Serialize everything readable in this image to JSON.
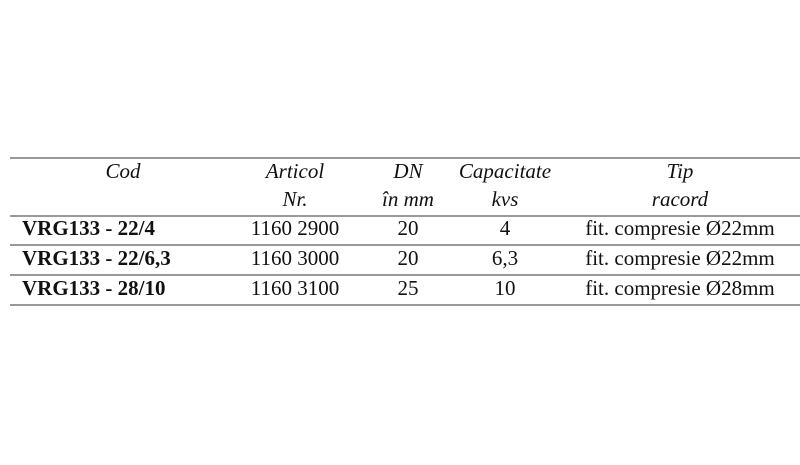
{
  "table": {
    "header": [
      [
        "Cod"
      ],
      [
        "Articol",
        "Nr."
      ],
      [
        "DN",
        "în mm"
      ],
      [
        "Capacitate",
        "kvs"
      ],
      [
        "Tip",
        "racord"
      ]
    ],
    "rows": [
      [
        "VRG133 - 22/4",
        "1160 2900",
        "20",
        "4",
        "fit. compresie Ø22mm"
      ],
      [
        "VRG133 - 22/6,3",
        "1160 3000",
        "20",
        "6,3",
        "fit. compresie Ø22mm"
      ],
      [
        "VRG133 - 28/10",
        "1160 3100",
        "25",
        "10",
        "fit. compresie Ø28mm"
      ]
    ]
  }
}
